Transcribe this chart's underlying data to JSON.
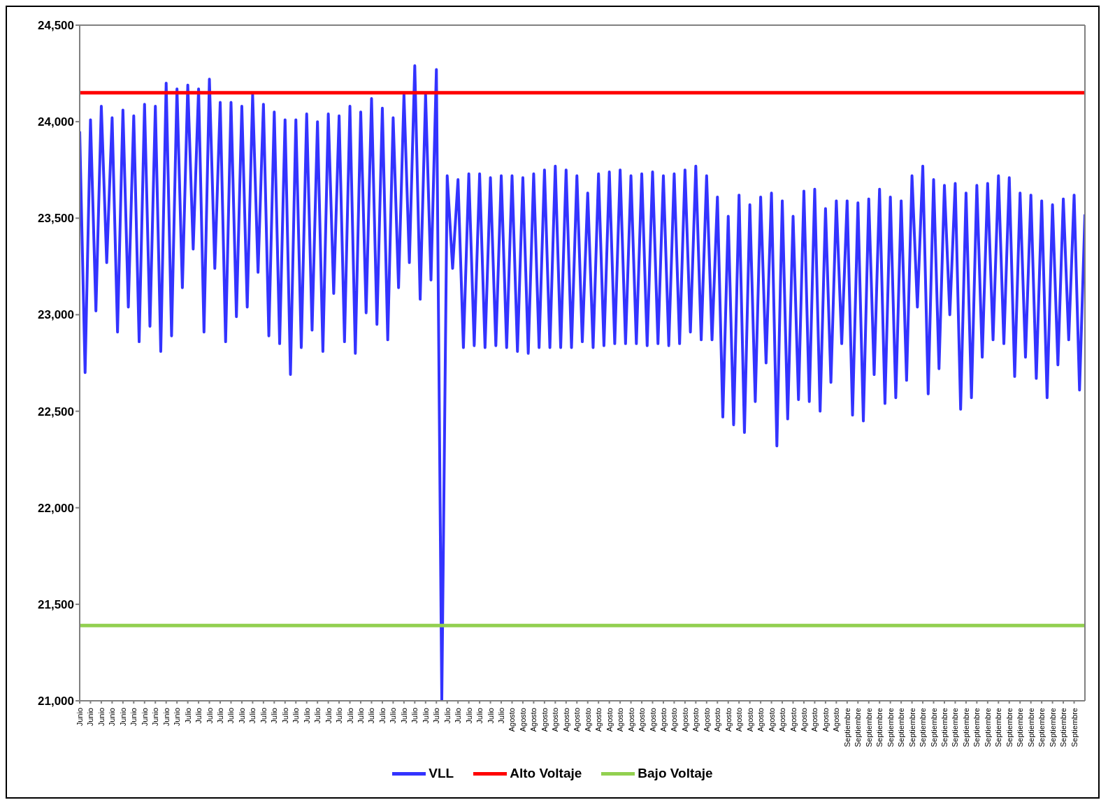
{
  "chart_data": {
    "type": "line",
    "categories": [
      "Junio",
      null,
      "Junio",
      null,
      "Junio",
      null,
      "Junio",
      null,
      "Junio",
      null,
      "Junio",
      null,
      "Junio",
      null,
      "Junio",
      null,
      "Junio",
      null,
      "Junio",
      null,
      "Julio",
      null,
      "Julio",
      null,
      "Julio",
      null,
      "Julio",
      null,
      "Julio",
      null,
      "Julio",
      null,
      "Julio",
      null,
      "Julio",
      null,
      "Julio",
      null,
      "Julio",
      null,
      "Julio",
      null,
      "Julio",
      null,
      "Julio",
      null,
      "Julio",
      null,
      "Julio",
      null,
      "Julio",
      null,
      "Julio",
      null,
      "Julio",
      null,
      "Julio",
      null,
      "Julio",
      null,
      "Julio",
      null,
      "Julio",
      null,
      "Julio",
      null,
      "Julio",
      null,
      "Julio",
      null,
      "Julio",
      null,
      "Julio",
      null,
      "Julio",
      null,
      "Julio",
      null,
      "Julio",
      null,
      "Agosto",
      null,
      "Agosto",
      null,
      "Agosto",
      null,
      "Agosto",
      null,
      "Agosto",
      null,
      "Agosto",
      null,
      "Agosto",
      null,
      "Agosto",
      null,
      "Agosto",
      null,
      "Agosto",
      null,
      "Agosto",
      null,
      "Agosto",
      null,
      "Agosto",
      null,
      "Agosto",
      null,
      "Agosto",
      null,
      "Agosto",
      null,
      "Agosto",
      null,
      "Agosto",
      null,
      "Agosto",
      null,
      "Agosto",
      null,
      "Agosto",
      null,
      "Agosto",
      null,
      "Agosto",
      null,
      "Agosto",
      null,
      "Agosto",
      null,
      "Agosto",
      null,
      "Agosto",
      null,
      "Agosto",
      null,
      "Agosto",
      null,
      "Agosto",
      null,
      "Agosto",
      null,
      "Septiembre",
      null,
      "Septiembre",
      null,
      "Septiembre",
      null,
      "Septiembre",
      null,
      "Septiembre",
      null,
      "Septiembre",
      null,
      "Septiembre",
      null,
      "Septiembre",
      null,
      "Septiembre",
      null,
      "Septiembre",
      null,
      "Septiembre",
      null,
      "Septiembre",
      null,
      "Septiembre",
      null,
      "Septiembre",
      null,
      "Septiembre",
      null,
      "Septiembre",
      null,
      "Septiembre",
      null,
      "Septiembre",
      null,
      "Septiembre",
      null,
      "Septiembre",
      null,
      "Septiembre",
      null,
      "Septiembre",
      null,
      null
    ],
    "series": [
      {
        "name": "VLL",
        "color": "#3333ff",
        "values": [
          23950,
          22700,
          24010,
          23020,
          24080,
          23270,
          24020,
          22910,
          24060,
          23040,
          24030,
          22860,
          24090,
          22940,
          24080,
          22810,
          24200,
          22890,
          24170,
          23140,
          24190,
          23340,
          24170,
          22910,
          24220,
          23240,
          24100,
          22860,
          24100,
          22990,
          24080,
          23040,
          24140,
          23220,
          24090,
          22890,
          24050,
          22850,
          24010,
          22690,
          24010,
          22830,
          24040,
          22920,
          24000,
          22810,
          24040,
          23110,
          24030,
          22860,
          24080,
          22800,
          24050,
          23010,
          24120,
          22950,
          24070,
          22870,
          24020,
          23140,
          24140,
          23270,
          24290,
          23080,
          24140,
          23180,
          24270,
          21000,
          23720,
          23240,
          23700,
          22830,
          23730,
          22840,
          23730,
          22830,
          23710,
          22840,
          23720,
          22830,
          23720,
          22810,
          23710,
          22800,
          23730,
          22830,
          23750,
          22830,
          23770,
          22830,
          23750,
          22830,
          23720,
          22860,
          23630,
          22830,
          23730,
          22840,
          23740,
          22850,
          23750,
          22850,
          23720,
          22850,
          23730,
          22840,
          23740,
          22850,
          23720,
          22840,
          23730,
          22850,
          23750,
          22910,
          23770,
          22870,
          23720,
          22870,
          23610,
          22470,
          23510,
          22430,
          23620,
          22390,
          23570,
          22550,
          23610,
          22750,
          23630,
          22320,
          23590,
          22460,
          23510,
          22560,
          23640,
          22550,
          23650,
          22500,
          23550,
          22650,
          23590,
          22850,
          23590,
          22480,
          23580,
          22450,
          23600,
          22690,
          23650,
          22540,
          23610,
          22570,
          23590,
          22660,
          23720,
          23040,
          23770,
          22590,
          23700,
          22720,
          23670,
          23000,
          23680,
          22510,
          23630,
          22570,
          23670,
          22780,
          23680,
          22870,
          23720,
          22850,
          23710,
          22680,
          23630,
          22780,
          23620,
          22670,
          23590,
          22570,
          23570,
          22740,
          23600,
          22870,
          23620,
          22610,
          23520
        ]
      }
    ],
    "ref_lines": [
      {
        "axis": "y",
        "value": 24150,
        "label": "Alto Voltaje",
        "color": "#ff0000"
      },
      {
        "axis": "y",
        "value": 21390,
        "label": "Bajo Voltaje",
        "color": "#92d050"
      }
    ],
    "ylim": [
      21000,
      24500
    ],
    "yticks": [
      {
        "value": 21000,
        "label": "21,000"
      },
      {
        "value": 21500,
        "label": "21,500"
      },
      {
        "value": 22000,
        "label": "22,000"
      },
      {
        "value": 22500,
        "label": "22,500"
      },
      {
        "value": 23000,
        "label": "23,000"
      },
      {
        "value": 23500,
        "label": "23,500"
      },
      {
        "value": 24000,
        "label": "24,000"
      },
      {
        "value": 24500,
        "label": "24,500"
      }
    ],
    "legend": "bottom",
    "marker": "none",
    "line_style": "solid"
  }
}
